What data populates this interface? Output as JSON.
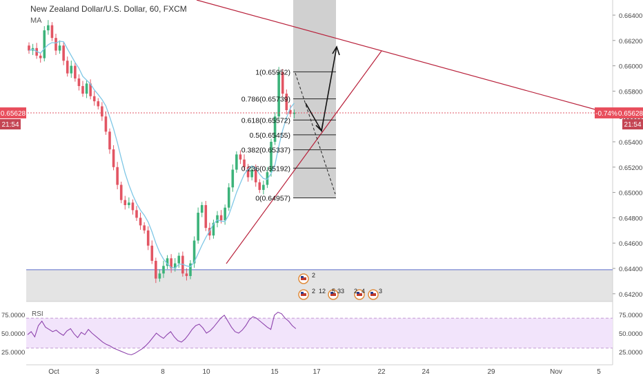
{
  "header": {
    "title": "New Zealand Dollar/U.S. Dollar, 60, FXCM",
    "indicator": "MA"
  },
  "price_badge": {
    "value": "0.65628",
    "time": "21:54",
    "change": "-0.74%",
    "color": "#e84e5c"
  },
  "colors": {
    "up": "#3cb37a",
    "down": "#e25563",
    "ma": "#7ec7e6",
    "trend": "#b8203a",
    "support": "#5b6cc9",
    "zone": "#c8c8c8",
    "rsi": "#8e44ad",
    "rsi_band": "#f2e4fb"
  },
  "chart_data": {
    "type": "candlestick",
    "symbol": "NZD/USD",
    "timeframe": "60",
    "y_ticks": [
      "0.66400",
      "0.66200",
      "0.66000",
      "0.65800",
      "0.65600",
      "0.65400",
      "0.65200",
      "0.65000",
      "0.64800",
      "0.64600",
      "0.64400",
      "0.64200"
    ],
    "ylim": [
      0.6416,
      0.665
    ],
    "x_ticks": [
      "Oct",
      "3",
      "8",
      "10",
      "15",
      "17",
      "22",
      "24",
      "29",
      "Nov",
      "5"
    ],
    "fibonacci": [
      {
        "label": "1(0.65952)",
        "value": 0.65952
      },
      {
        "label": "0.786(0.65739)",
        "value": 0.65739
      },
      {
        "label": "0.618(0.65572)",
        "value": 0.65572
      },
      {
        "label": "0.5(0.65455)",
        "value": 0.65455
      },
      {
        "label": "0.382(0.65337)",
        "value": 0.65337
      },
      {
        "label": "0.236(0.65192)",
        "value": 0.65192
      },
      {
        "label": "0(0.64957)",
        "value": 0.64957
      }
    ],
    "support_level": 0.6439,
    "current_price": 0.65628,
    "close_path": [
      0.6612,
      0.6614,
      0.6608,
      0.6606,
      0.6628,
      0.6632,
      0.6622,
      0.6612,
      0.6616,
      0.6604,
      0.6594,
      0.66,
      0.659,
      0.6584,
      0.6578,
      0.6586,
      0.6576,
      0.6572,
      0.6568,
      0.656,
      0.6548,
      0.6534,
      0.652,
      0.6506,
      0.6494,
      0.649,
      0.6492,
      0.6486,
      0.648,
      0.6474,
      0.647,
      0.6458,
      0.6446,
      0.6432,
      0.6436,
      0.6442,
      0.6448,
      0.644,
      0.6444,
      0.645,
      0.6436,
      0.6434,
      0.6444,
      0.6462,
      0.6484,
      0.649,
      0.6472,
      0.6466,
      0.6476,
      0.6482,
      0.6478,
      0.6488,
      0.6504,
      0.6518,
      0.653,
      0.6526,
      0.652,
      0.6512,
      0.6518,
      0.6508,
      0.6502,
      0.6506,
      0.6516,
      0.654,
      0.656,
      0.6595,
      0.6578,
      0.6565,
      0.6562,
      0.6563
    ],
    "rsi": {
      "ticks": [
        "75.0000",
        "50.0000",
        "25.0000"
      ],
      "ylim": [
        15,
        85
      ],
      "bands": [
        70,
        30
      ],
      "values": [
        48,
        52,
        45,
        60,
        66,
        58,
        55,
        52,
        54,
        50,
        47,
        53,
        56,
        49,
        44,
        51,
        48,
        55,
        50,
        46,
        42,
        38,
        35,
        33,
        30,
        28,
        26,
        24,
        22,
        21,
        23,
        26,
        29,
        33,
        38,
        44,
        50,
        46,
        43,
        48,
        52,
        45,
        40,
        38,
        42,
        48,
        55,
        60,
        62,
        57,
        50,
        53,
        58,
        64,
        70,
        74,
        66,
        58,
        52,
        50,
        54,
        60,
        68,
        72,
        70,
        66,
        62,
        58,
        55,
        74,
        78,
        76,
        70,
        66,
        60,
        56
      ]
    },
    "events": [
      {
        "label": "2"
      },
      {
        "label": "2"
      },
      {
        "label": "12"
      },
      {
        "label": "5"
      },
      {
        "label": "33"
      },
      {
        "label": "2"
      },
      {
        "label": "4"
      },
      {
        "label": "3"
      }
    ]
  }
}
